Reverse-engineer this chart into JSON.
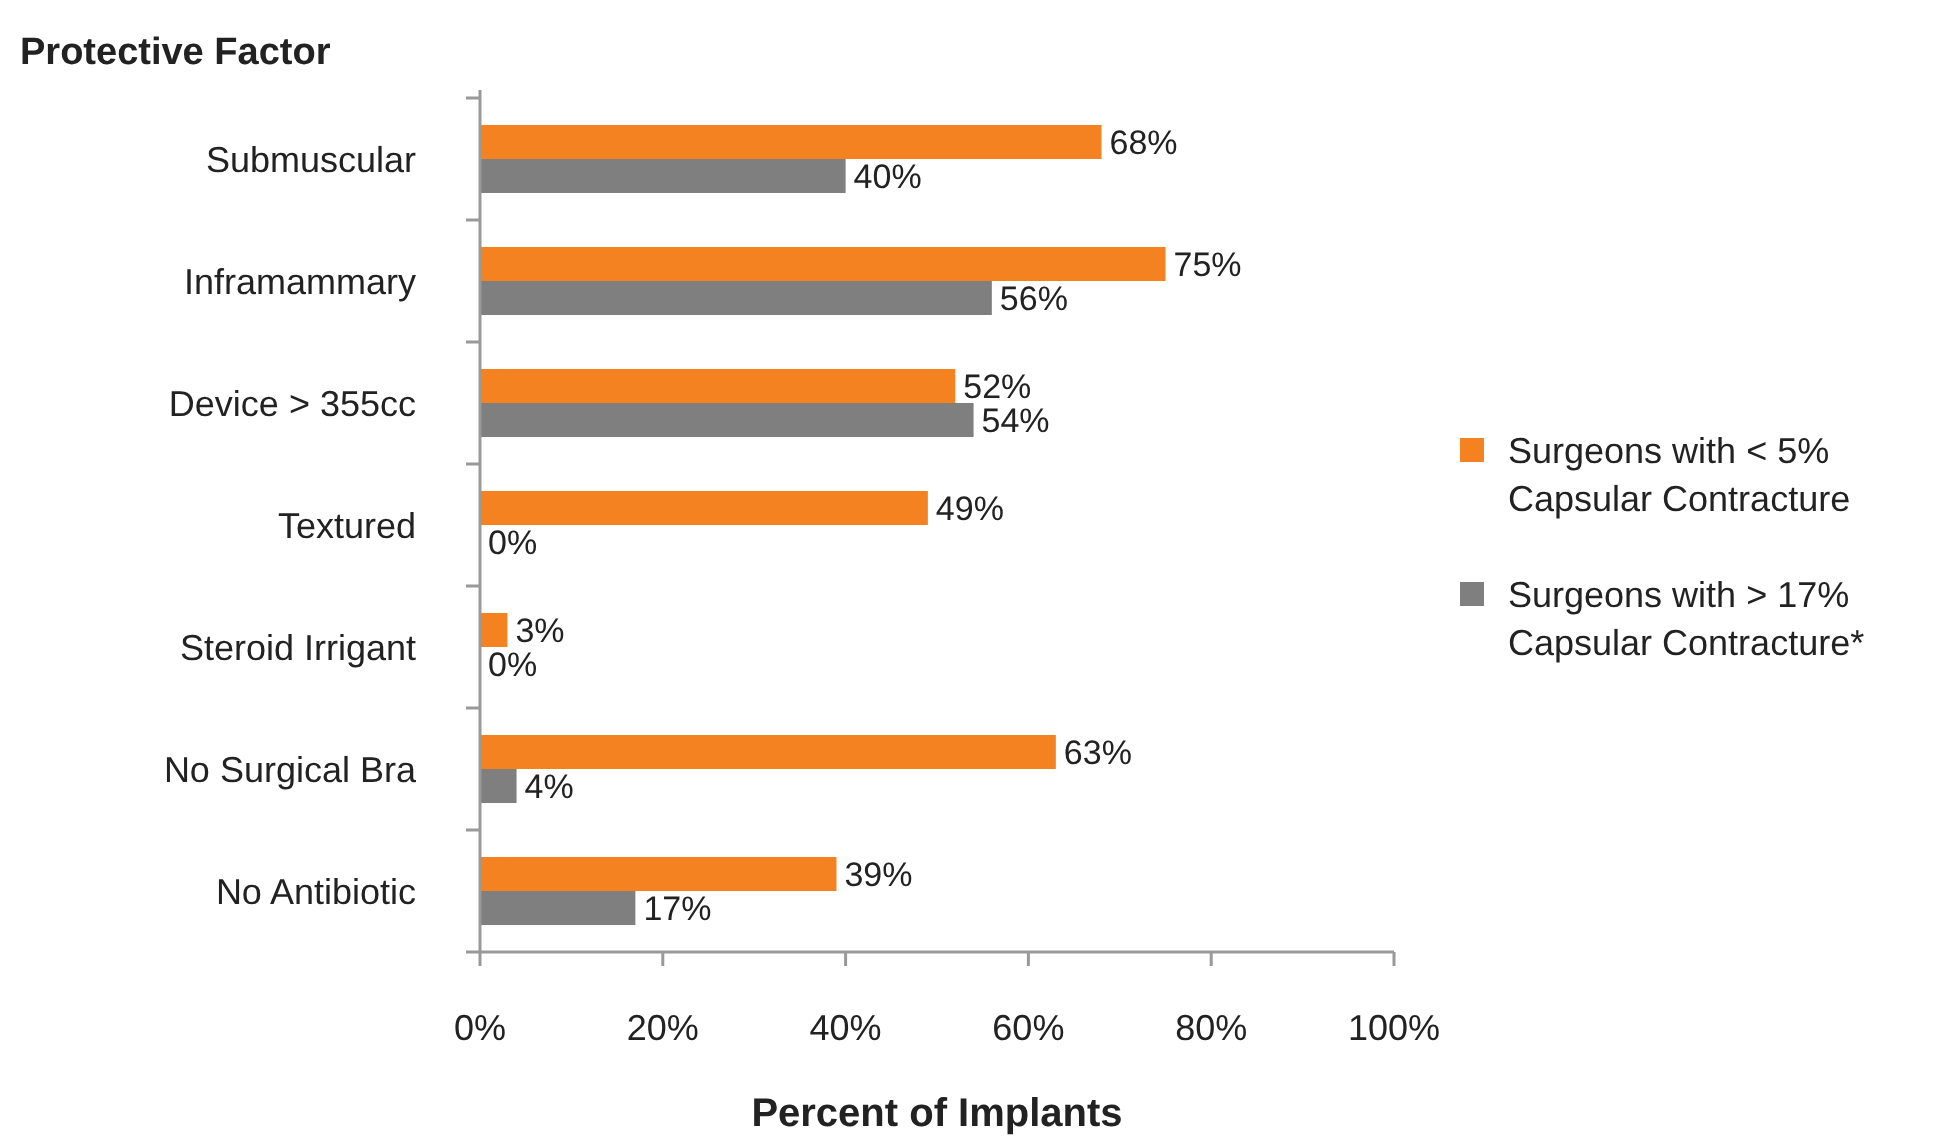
{
  "chart_data": {
    "type": "bar",
    "orientation": "horizontal",
    "title": "Protective Factor",
    "xlabel": "Percent of Implants",
    "categories": [
      "Submuscular",
      "Inframammary",
      "Device > 355cc",
      "Textured",
      "Steroid Irrigant",
      "No Surgical Bra",
      "No Antibiotic"
    ],
    "series": [
      {
        "name": "Surgeons with < 5% Capsular Contracture",
        "color": "#f58220",
        "values": [
          68,
          75,
          52,
          49,
          3,
          63,
          39
        ],
        "value_labels": [
          "68%",
          "75%",
          "52%",
          "49%",
          "3%",
          "63%",
          "39%"
        ]
      },
      {
        "name": "Surgeons with > 17% Capsular Contracture*",
        "color": "#7f7f7f",
        "values": [
          40,
          56,
          54,
          0,
          0,
          4,
          17
        ],
        "value_labels": [
          "40%",
          "56%",
          "54%",
          "0%",
          "0%",
          "4%",
          "17%"
        ]
      }
    ],
    "xlim": [
      0,
      100
    ],
    "xticks": [
      {
        "value": 0,
        "label": "0%"
      },
      {
        "value": 20,
        "label": "20%"
      },
      {
        "value": 40,
        "label": "40%"
      },
      {
        "value": 60,
        "label": "60%"
      },
      {
        "value": 80,
        "label": "80%"
      },
      {
        "value": 100,
        "label": "100%"
      }
    ],
    "grid": false,
    "legend": "right"
  }
}
